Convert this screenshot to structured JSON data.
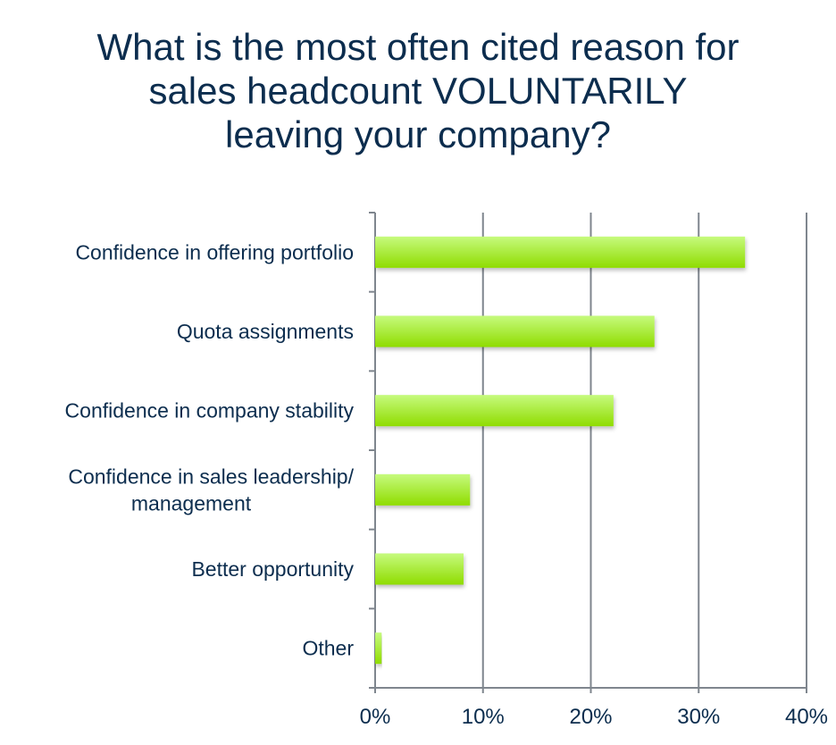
{
  "chart_data": {
    "type": "bar",
    "orientation": "horizontal",
    "title_lines": [
      "What is the most often cited reason for",
      "sales headcount VOLUNTARILY",
      "leaving your company?"
    ],
    "categories": [
      [
        "Confidence in offering portfolio"
      ],
      [
        "Quota assignments"
      ],
      [
        "Confidence in company stability"
      ],
      [
        "Confidence in sales leadership/",
        "management"
      ],
      [
        "Better opportunity"
      ],
      [
        "Other"
      ]
    ],
    "values": [
      34.3,
      25.9,
      22.1,
      8.8,
      8.2,
      0.6
    ],
    "xlim": [
      0,
      40
    ],
    "xticks": [
      0,
      10,
      20,
      30,
      40
    ],
    "xtick_labels": [
      "0%",
      "10%",
      "20%",
      "30%",
      "40%"
    ],
    "grid": "vertical",
    "colors": {
      "bar_top": "#c6fa7e",
      "bar_bottom": "#8fdc00",
      "grid": "#7f868e",
      "text": "#0c2d4e"
    }
  }
}
